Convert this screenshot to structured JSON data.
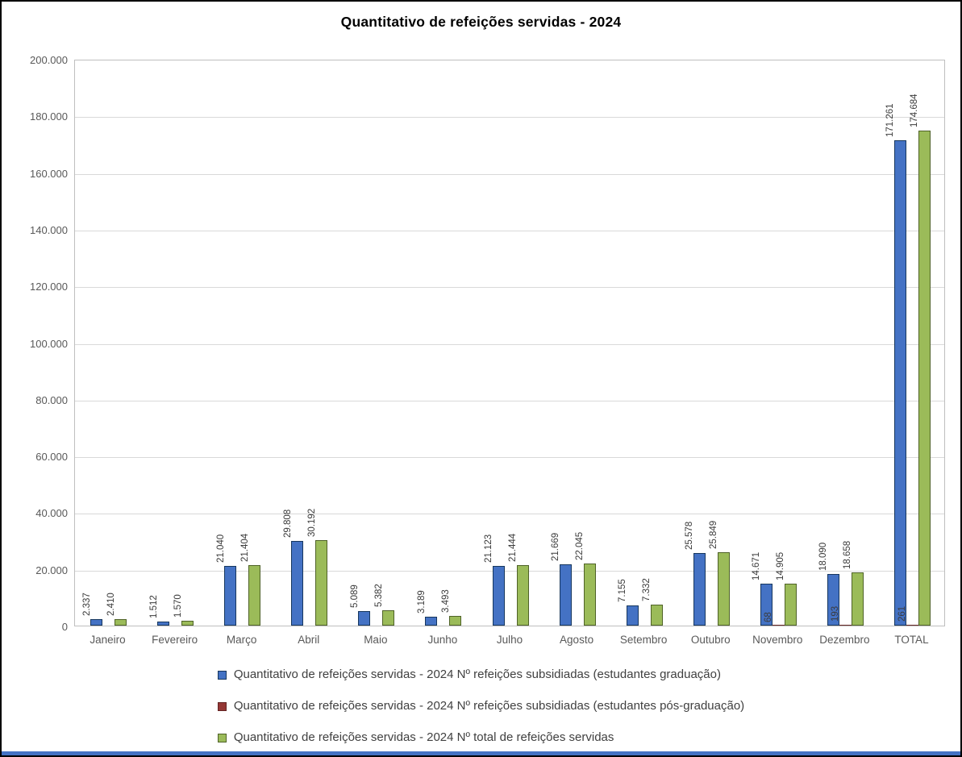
{
  "chart_data": {
    "type": "bar",
    "title": "Quantitativo de refeições servidas - 2024",
    "categories": [
      "Janeiro",
      "Fevereiro",
      "Março",
      "Abril",
      "Maio",
      "Junho",
      "Julho",
      "Agosto",
      "Setembro",
      "Outubro",
      "Novembro",
      "Dezembro",
      "TOTAL"
    ],
    "series": [
      {
        "name": "Quantitativo de refeições servidas - 2024 Nº refeições subsidiadas (estudantes graduação)",
        "color": "#4472c4",
        "border_color": "#17375e",
        "values": [
          2337,
          1512,
          21040,
          29808,
          5089,
          3189,
          21123,
          21669,
          7155,
          25578,
          14671,
          18090,
          171261
        ],
        "labels": [
          "2.337",
          "1.512",
          "21.040",
          "29.808",
          "5.089",
          "3.189",
          "21.123",
          "21.669",
          "7.155",
          "25.578",
          "14.671",
          "18.090",
          "171.261"
        ]
      },
      {
        "name": "Quantitativo de refeições servidas - 2024 Nº refeições subsidiadas (estudantes pós-graduação)",
        "color": "#953735",
        "border_color": "#632423",
        "values": [
          null,
          null,
          null,
          null,
          null,
          null,
          null,
          null,
          null,
          null,
          68,
          193,
          261
        ],
        "labels": [
          null,
          null,
          null,
          null,
          null,
          null,
          null,
          null,
          null,
          null,
          "68",
          "193",
          "261"
        ]
      },
      {
        "name": "Quantitativo de refeições servidas - 2024 Nº total de refeições servidas",
        "color": "#9bbb59",
        "border_color": "#4f6228",
        "values": [
          2410,
          1570,
          21404,
          30192,
          5382,
          3493,
          21444,
          22045,
          7332,
          25849,
          14905,
          18658,
          174684
        ],
        "labels": [
          "2.410",
          "1.570",
          "21.404",
          "30.192",
          "5.382",
          "3.493",
          "21.444",
          "22.045",
          "7.332",
          "25.849",
          "14.905",
          "18.658",
          "174.684"
        ]
      }
    ],
    "ylim": [
      0,
      200000
    ],
    "ytick_step": 20000,
    "yticks": [
      {
        "value": 0,
        "label": "0"
      },
      {
        "value": 20000,
        "label": "20.000"
      },
      {
        "value": 40000,
        "label": "40.000"
      },
      {
        "value": 60000,
        "label": "60.000"
      },
      {
        "value": 80000,
        "label": "80.000"
      },
      {
        "value": 100000,
        "label": "100.000"
      },
      {
        "value": 120000,
        "label": "120.000"
      },
      {
        "value": 140000,
        "label": "140.000"
      },
      {
        "value": 160000,
        "label": "160.000"
      },
      {
        "value": 180000,
        "label": "180.000"
      },
      {
        "value": 200000,
        "label": "200.000"
      }
    ],
    "grid": true,
    "legend_position": "bottom",
    "accent_bar_color": "#4472c4"
  }
}
